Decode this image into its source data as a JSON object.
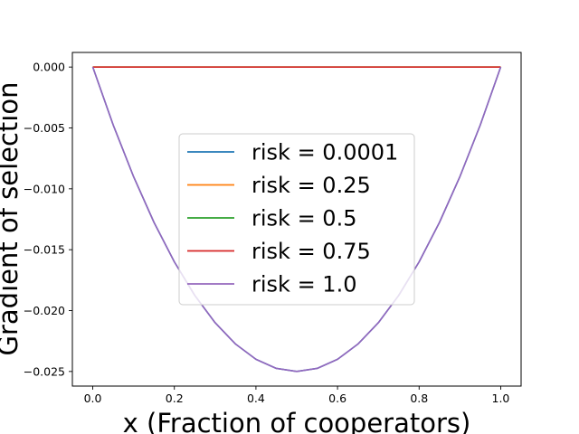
{
  "chart_data": {
    "type": "line",
    "xlabel": "x (Fraction of cooperators)",
    "ylabel": "Gradient of selection",
    "xlim": [
      -0.05,
      1.05
    ],
    "ylim": [
      -0.0262,
      0.0012
    ],
    "x_ticks": [
      0.0,
      0.2,
      0.4,
      0.6,
      0.8,
      1.0
    ],
    "x_tick_labels": [
      "0.0",
      "0.2",
      "0.4",
      "0.6",
      "0.8",
      "1.0"
    ],
    "y_ticks": [
      0.0,
      -0.005,
      -0.01,
      -0.015,
      -0.02,
      -0.025
    ],
    "y_tick_labels": [
      "0.000",
      "−0.005",
      "−0.010",
      "−0.015",
      "−0.020",
      "−0.025"
    ],
    "grid": false,
    "legend_position": "center",
    "x": [
      0.0,
      0.05,
      0.1,
      0.15,
      0.2,
      0.25,
      0.3,
      0.35,
      0.4,
      0.45,
      0.5,
      0.55,
      0.6,
      0.65,
      0.7,
      0.75,
      0.8,
      0.85,
      0.9,
      0.95,
      1.0
    ],
    "series": [
      {
        "name": "risk = 0.0001",
        "color": "#1f77b4",
        "values": [
          0,
          -0.00475,
          -0.009,
          -0.01275,
          -0.016,
          -0.01875,
          -0.021,
          -0.02275,
          -0.024,
          -0.02475,
          -0.025,
          -0.02475,
          -0.024,
          -0.02275,
          -0.021,
          -0.01875,
          -0.016,
          -0.01275,
          -0.009,
          -0.00475,
          0
        ]
      },
      {
        "name": "risk = 0.25",
        "color": "#ff7f0e",
        "values": [
          0,
          0,
          0,
          0,
          0,
          0,
          0,
          0,
          0,
          0,
          0,
          0,
          0,
          0,
          0,
          0,
          0,
          0,
          0,
          0,
          0
        ]
      },
      {
        "name": "risk = 0.5",
        "color": "#2ca02c",
        "values": [
          0,
          0,
          0,
          0,
          0,
          0,
          0,
          0,
          0,
          0,
          0,
          0,
          0,
          0,
          0,
          0,
          0,
          0,
          0,
          0,
          0
        ]
      },
      {
        "name": "risk = 0.75",
        "color": "#d62728",
        "values": [
          0,
          0,
          0,
          0,
          0,
          0,
          0,
          0,
          0,
          0,
          0,
          0,
          0,
          0,
          0,
          0,
          0,
          0,
          0,
          0,
          0
        ]
      },
      {
        "name": "risk = 1.0",
        "color": "#9467bd",
        "values": [
          0,
          -0.00475,
          -0.009,
          -0.01275,
          -0.016,
          -0.01875,
          -0.021,
          -0.02275,
          -0.024,
          -0.02475,
          -0.025,
          -0.02475,
          -0.024,
          -0.02275,
          -0.021,
          -0.01875,
          -0.016,
          -0.01275,
          -0.009,
          -0.00475,
          0
        ]
      }
    ]
  }
}
